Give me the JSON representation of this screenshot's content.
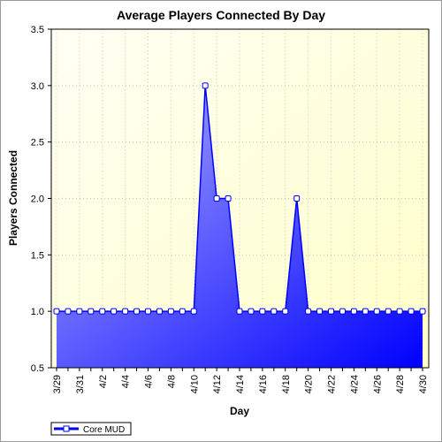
{
  "chart_data": {
    "type": "area",
    "title": "Average Players Connected By Day",
    "xlabel": "Day",
    "ylabel": "Players Connected",
    "x": [
      "3/29",
      "3/30",
      "3/31",
      "4/1",
      "4/2",
      "4/3",
      "4/4",
      "4/5",
      "4/6",
      "4/7",
      "4/8",
      "4/9",
      "4/10",
      "4/11",
      "4/12",
      "4/13",
      "4/14",
      "4/15",
      "4/16",
      "4/17",
      "4/18",
      "4/19",
      "4/20",
      "4/21",
      "4/22",
      "4/23",
      "4/24",
      "4/25",
      "4/26",
      "4/27",
      "4/28",
      "4/29",
      "4/30"
    ],
    "xtick_labels": [
      "3/29",
      "3/31",
      "4/2",
      "4/4",
      "4/6",
      "4/8",
      "4/10",
      "4/12",
      "4/14",
      "4/16",
      "4/18",
      "4/20",
      "4/22",
      "4/24",
      "4/26",
      "4/28",
      "4/30"
    ],
    "series": [
      {
        "name": "Core MUD",
        "values": [
          1,
          1,
          1,
          1,
          1,
          1,
          1,
          1,
          1,
          1,
          1,
          1,
          1,
          3,
          2,
          2,
          1,
          1,
          1,
          1,
          1,
          2,
          1,
          1,
          1,
          1,
          1,
          1,
          1,
          1,
          1,
          1,
          1
        ]
      }
    ],
    "ylim": [
      0.5,
      3.5
    ],
    "yticks": [
      "0.5",
      "1.0",
      "1.5",
      "2.0",
      "2.5",
      "3.0",
      "3.5"
    ],
    "grid": true,
    "legend_position": "bottom-left",
    "colors": {
      "line": "#0000ff",
      "fill_light": "#b4b4ff",
      "fill_dark": "#0000ff",
      "marker_fill": "#ffffff",
      "plot_bg_light": "#fffff0",
      "plot_bg_dark": "#ffffc8"
    }
  }
}
